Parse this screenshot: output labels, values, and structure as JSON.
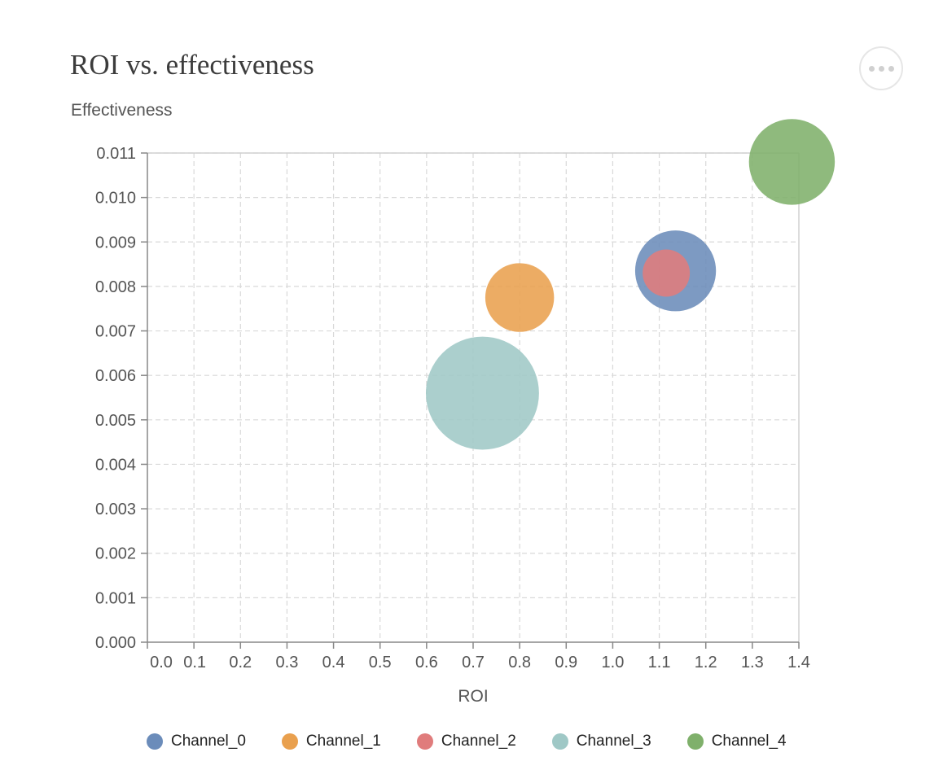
{
  "title": "ROI vs. effectiveness",
  "menu_icon": "more-horizontal-icon",
  "chart_data": {
    "type": "scatter",
    "xlabel": "ROI",
    "ylabel": "Effectiveness",
    "xlim": [
      0,
      1.4
    ],
    "ylim": [
      0,
      0.011
    ],
    "x_ticks": [
      "0.0",
      "0.1",
      "0.2",
      "0.3",
      "0.4",
      "0.5",
      "0.6",
      "0.7",
      "0.8",
      "0.9",
      "1.0",
      "1.1",
      "1.2",
      "1.3",
      "1.4"
    ],
    "y_ticks": [
      "0.000",
      "0.001",
      "0.002",
      "0.003",
      "0.004",
      "0.005",
      "0.006",
      "0.007",
      "0.008",
      "0.009",
      "0.010",
      "0.011"
    ],
    "grid": true,
    "legend_position": "bottom",
    "series": [
      {
        "name": "Channel_0",
        "color": "#6b8cba",
        "x": 1.135,
        "y": 0.00835,
        "size": 4.7
      },
      {
        "name": "Channel_1",
        "color": "#e9a04e",
        "x": 0.8,
        "y": 0.00775,
        "size": 3.4
      },
      {
        "name": "Channel_2",
        "color": "#e07c7c",
        "x": 1.115,
        "y": 0.0083,
        "size": 1.6
      },
      {
        "name": "Channel_3",
        "color": "#9fc8c6",
        "x": 0.72,
        "y": 0.0056,
        "size": 9.2
      },
      {
        "name": "Channel_4",
        "color": "#7fb06b",
        "x": 1.385,
        "y": 0.0108,
        "size": 5.3
      }
    ]
  }
}
